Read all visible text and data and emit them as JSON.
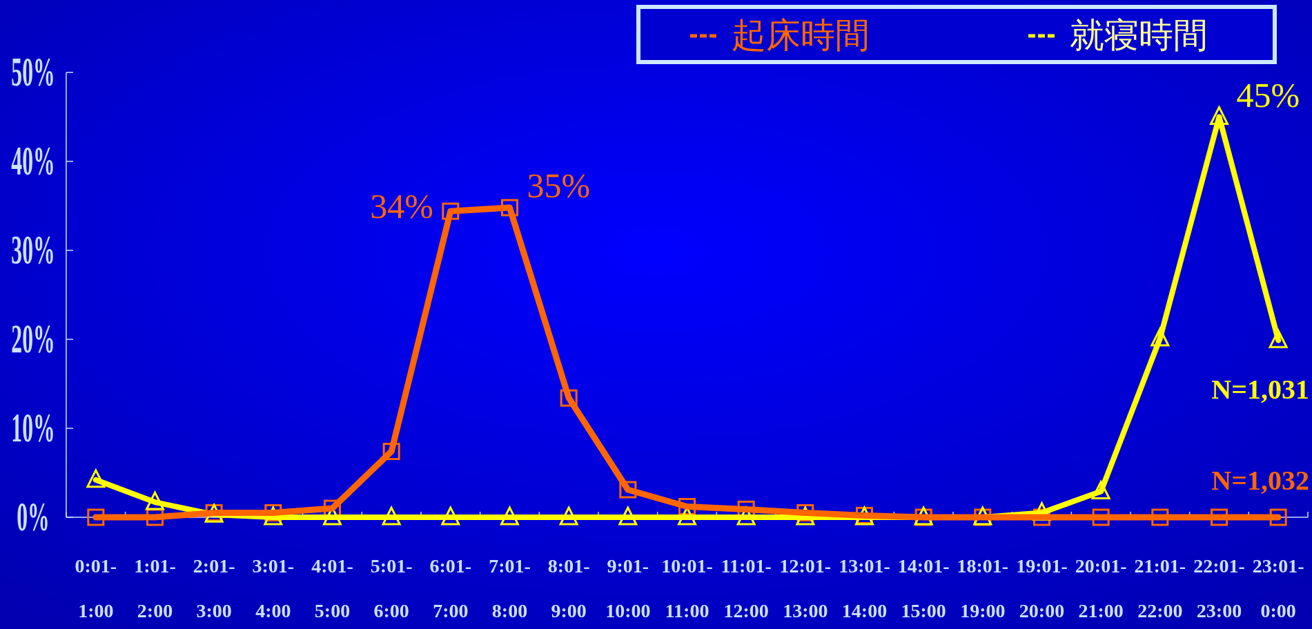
{
  "chart_data": {
    "type": "line",
    "categories": [
      "0:01-1:00",
      "1:01-2:00",
      "2:01-3:00",
      "3:01-4:00",
      "4:01-5:00",
      "5:01-6:00",
      "6:01-7:00",
      "7:01-8:00",
      "8:01-9:00",
      "9:01-10:00",
      "10:01-11:00",
      "11:01-12:00",
      "12:01-13:00",
      "13:01-14:00",
      "14:01-15:00",
      "18:01-19:00",
      "19:01-20:00",
      "20:01-21:00",
      "21:01-22:00",
      "22:01-23:00",
      "23:01-0:00"
    ],
    "series": [
      {
        "name": "起床時間",
        "color": "#ff6600",
        "marker": "square",
        "values": [
          0,
          0,
          0.5,
          0.5,
          1,
          7.4,
          34.4,
          34.8,
          13.4,
          3.1,
          1.2,
          0.9,
          0.5,
          0.2,
          0,
          0,
          0,
          0,
          0,
          0,
          0
        ],
        "value_labels": [
          null,
          null,
          null,
          null,
          null,
          null,
          "34%",
          "35%",
          null,
          null,
          null,
          null,
          null,
          null,
          null,
          null,
          null,
          null,
          null,
          null,
          null
        ]
      },
      {
        "name": "就寝時間",
        "color": "#ffff00",
        "marker": "triangle",
        "values": [
          4.2,
          1.7,
          0.3,
          0,
          0,
          0,
          0,
          0,
          0,
          0,
          0,
          0,
          0,
          0,
          0,
          0,
          0.5,
          2.9,
          20.1,
          45,
          19.9
        ],
        "value_labels": [
          null,
          null,
          null,
          null,
          null,
          null,
          null,
          null,
          null,
          null,
          null,
          null,
          null,
          null,
          null,
          null,
          null,
          null,
          null,
          "45%",
          null
        ]
      }
    ],
    "ylim": [
      0,
      50
    ],
    "yticks": [
      {
        "value": 0,
        "label": "0%"
      },
      {
        "value": 10,
        "label": "10%"
      },
      {
        "value": 20,
        "label": "20%"
      },
      {
        "value": 30,
        "label": "30%"
      },
      {
        "value": 40,
        "label": "40%"
      },
      {
        "value": 50,
        "label": "50%"
      }
    ],
    "legend": "top right",
    "annotations": [
      "N=1,031",
      "N=1,032"
    ]
  }
}
